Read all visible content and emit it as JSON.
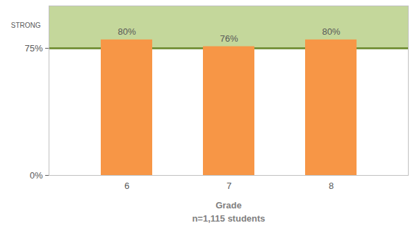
{
  "chart_data": {
    "type": "bar",
    "categories": [
      "6",
      "7",
      "8"
    ],
    "values": [
      80,
      76,
      80
    ],
    "value_labels": [
      "80%",
      "76%",
      "80%"
    ],
    "data_labels": true,
    "color": "#f79646",
    "ylim": [
      0,
      100
    ],
    "yticks": [
      {
        "value": 0,
        "label": "0%"
      },
      {
        "value": 75,
        "label": "75%"
      }
    ],
    "x_label": "Grade",
    "x_note": "n=1,115 students",
    "band": {
      "from": 75,
      "to": 100,
      "label": "STRONG",
      "color": "#c4d79b"
    },
    "grid": false
  }
}
